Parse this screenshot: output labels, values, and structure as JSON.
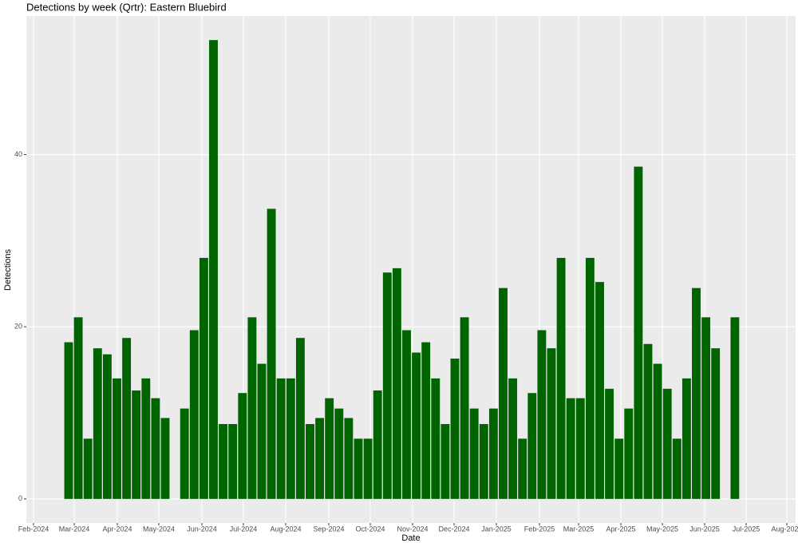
{
  "chart_data": {
    "type": "bar",
    "title": "Detections by week (Qrtr): Eastern Bluebird",
    "x_label": "Date",
    "y_label": "Detections",
    "color": "#006400",
    "grid": true,
    "categories": [
      null,
      null,
      null,
      null,
      null,
      null,
      null,
      null,
      null,
      null,
      null,
      null,
      null,
      null,
      null,
      null,
      null,
      null,
      null,
      null,
      null,
      null,
      null,
      null,
      null,
      null,
      null,
      null,
      null,
      null,
      null,
      null,
      null,
      null,
      null,
      null,
      null,
      null,
      null,
      null,
      null,
      null,
      null,
      null,
      null,
      null,
      null,
      null,
      null,
      null,
      null,
      null,
      null,
      null,
      null,
      null,
      null,
      null,
      null,
      null,
      null,
      null,
      null,
      null,
      null,
      null,
      null,
      null,
      null,
      null
    ],
    "values": [
      18.2,
      21.1,
      7.0,
      17.5,
      16.8,
      14.0,
      18.7,
      12.6,
      14.0,
      11.7,
      9.4,
      null,
      10.5,
      19.6,
      28.0,
      53.3,
      8.7,
      8.7,
      12.3,
      21.1,
      15.7,
      33.7,
      14.0,
      14.0,
      18.7,
      8.7,
      9.4,
      11.7,
      10.5,
      9.4,
      7.0,
      7.0,
      12.6,
      26.3,
      26.8,
      19.6,
      17.0,
      18.2,
      14.0,
      8.7,
      16.3,
      21.1,
      10.5,
      8.7,
      10.5,
      24.5,
      14.0,
      7.0,
      12.3,
      19.6,
      17.5,
      28.0,
      11.7,
      11.7,
      28.0,
      25.2,
      12.8,
      7.0,
      10.5,
      38.6,
      18.0,
      15.7,
      12.8,
      7.0,
      14.0,
      24.5,
      21.1,
      17.5,
      null,
      21.1
    ],
    "xlim": [
      -4.38,
      75.29
    ],
    "xticks": [
      {
        "value": -3.64,
        "label": "Feb-2024"
      },
      {
        "value": 0.58,
        "label": "Mar-2024"
      },
      {
        "value": 5.04,
        "label": "Apr-2024"
      },
      {
        "value": 9.34,
        "label": "May-2024"
      },
      {
        "value": 13.8,
        "label": "Jun-2024"
      },
      {
        "value": 18.1,
        "label": "Jul-2024"
      },
      {
        "value": 22.48,
        "label": "Aug-2024"
      },
      {
        "value": 26.94,
        "label": "Sep-2024"
      },
      {
        "value": 31.24,
        "label": "Oct-2024"
      },
      {
        "value": 35.62,
        "label": "Nov-2024"
      },
      {
        "value": 39.92,
        "label": "Dec-2024"
      },
      {
        "value": 44.3,
        "label": "Jan-2025"
      },
      {
        "value": 48.76,
        "label": "Feb-2025"
      },
      {
        "value": 52.81,
        "label": "Mar-2025"
      },
      {
        "value": 57.19,
        "label": "Apr-2025"
      },
      {
        "value": 61.49,
        "label": "May-2025"
      },
      {
        "value": 65.87,
        "label": "Jun-2025"
      },
      {
        "value": 70.17,
        "label": "Jul-2025"
      },
      {
        "value": 74.38,
        "label": "Aug-2025"
      }
    ],
    "ylim": [
      -2.8,
      56.1
    ],
    "yticks": [
      0,
      20,
      40
    ]
  }
}
